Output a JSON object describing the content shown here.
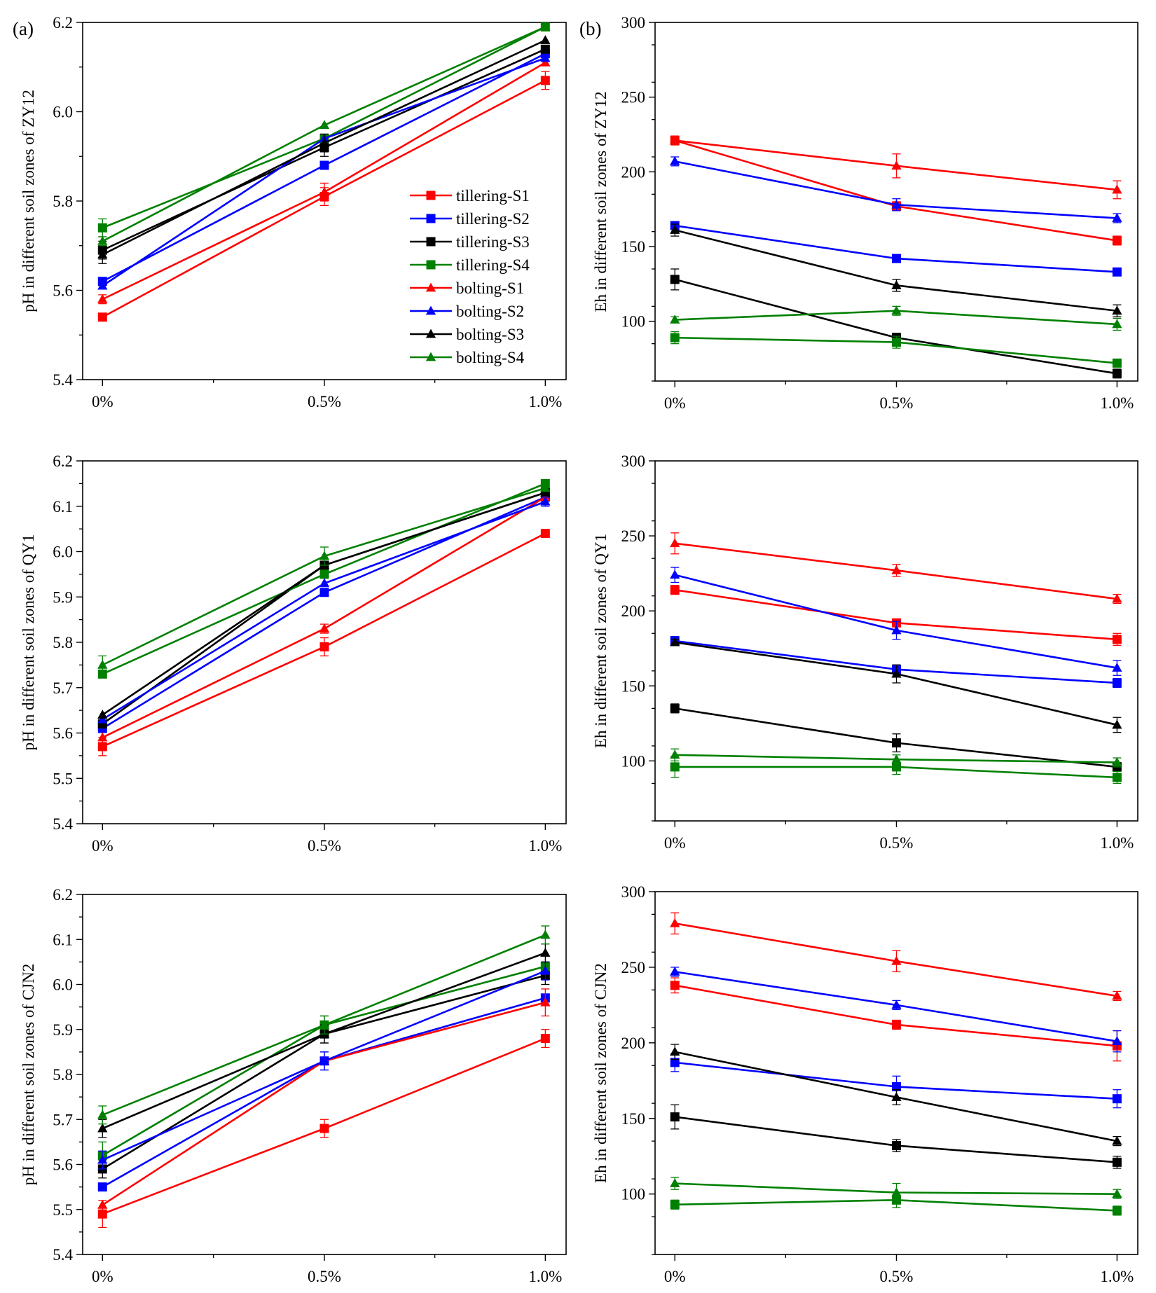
{
  "figure": {
    "panel_tags": [
      "(a)",
      "(b)"
    ],
    "colors": {
      "S1": "#ff0000",
      "S2": "#0000ff",
      "S3": "#000000",
      "S4": "#008000"
    }
  },
  "legend": [
    {
      "label": "tillering-S1",
      "color": "#ff0000",
      "marker": "square"
    },
    {
      "label": "tillering-S2",
      "color": "#0000ff",
      "marker": "square"
    },
    {
      "label": "tillering-S3",
      "color": "#000000",
      "marker": "square"
    },
    {
      "label": "tillering-S4",
      "color": "#008000",
      "marker": "square"
    },
    {
      "label": "bolting-S1",
      "color": "#ff0000",
      "marker": "triangle"
    },
    {
      "label": "bolting-S2",
      "color": "#0000ff",
      "marker": "triangle"
    },
    {
      "label": "bolting-S3",
      "color": "#000000",
      "marker": "triangle"
    },
    {
      "label": "bolting-S4",
      "color": "#008000",
      "marker": "triangle"
    }
  ],
  "chart_data": [
    {
      "type": "line",
      "id": "ph-zy12",
      "title": "",
      "categories": [
        "0%",
        "0.5%",
        "1.0%"
      ],
      "ylabel": "pH in different soil zones of ZY12",
      "xlabel": "",
      "ylim": [
        5.4,
        6.2
      ],
      "yticks": [
        5.4,
        5.6,
        5.8,
        6.0,
        6.2
      ],
      "ytick_labels": [
        "5.4",
        "5.6",
        "5.8",
        "6.0",
        "6.2"
      ],
      "yminor": 0.1,
      "series": [
        {
          "name": "tillering-S1",
          "values": [
            5.54,
            5.81,
            6.07
          ],
          "errors": [
            0.0,
            0.02,
            0.02
          ]
        },
        {
          "name": "tillering-S2",
          "values": [
            5.62,
            5.88,
            6.13
          ],
          "errors": [
            0.0,
            0.0,
            0.0
          ]
        },
        {
          "name": "tillering-S3",
          "values": [
            5.69,
            5.92,
            6.14
          ],
          "errors": [
            0.02,
            0.02,
            0.0
          ]
        },
        {
          "name": "tillering-S4",
          "values": [
            5.74,
            5.94,
            6.19
          ],
          "errors": [
            0.02,
            0.0,
            0.0
          ]
        },
        {
          "name": "bolting-S1",
          "values": [
            5.58,
            5.82,
            6.11
          ],
          "errors": [
            0.01,
            0.02,
            0.0
          ]
        },
        {
          "name": "bolting-S2",
          "values": [
            5.61,
            5.94,
            6.12
          ],
          "errors": [
            0.0,
            0.0,
            0.0
          ]
        },
        {
          "name": "bolting-S3",
          "values": [
            5.68,
            5.93,
            6.16
          ],
          "errors": [
            0.02,
            0.02,
            0.0
          ]
        },
        {
          "name": "bolting-S4",
          "values": [
            5.71,
            5.97,
            6.19
          ],
          "errors": [
            0.01,
            0.0,
            0.0
          ]
        }
      ]
    },
    {
      "type": "line",
      "id": "eh-zy12",
      "title": "",
      "categories": [
        "0%",
        "0.5%",
        "1.0%"
      ],
      "ylabel": "Eh in different soil zones of ZY12",
      "xlabel": "",
      "ylim": [
        60,
        300
      ],
      "yticks": [
        100,
        150,
        200,
        250,
        300
      ],
      "ytick_labels": [
        "100",
        "150",
        "200",
        "250",
        "300"
      ],
      "yminor": 25,
      "series": [
        {
          "name": "tillering-S1",
          "values": [
            221,
            177,
            154
          ],
          "errors": [
            3,
            3,
            3
          ]
        },
        {
          "name": "tillering-S2",
          "values": [
            164,
            142,
            133
          ],
          "errors": [
            2,
            2,
            2
          ]
        },
        {
          "name": "tillering-S3",
          "values": [
            128,
            89,
            65
          ],
          "errors": [
            7,
            3,
            3
          ]
        },
        {
          "name": "tillering-S4",
          "values": [
            89,
            86,
            72
          ],
          "errors": [
            4,
            4,
            2
          ]
        },
        {
          "name": "bolting-S1",
          "values": [
            221,
            204,
            188
          ],
          "errors": [
            3,
            8,
            6
          ]
        },
        {
          "name": "bolting-S2",
          "values": [
            207,
            178,
            169
          ],
          "errors": [
            3,
            4,
            3
          ]
        },
        {
          "name": "bolting-S3",
          "values": [
            161,
            124,
            107
          ],
          "errors": [
            4,
            4,
            4
          ]
        },
        {
          "name": "bolting-S4",
          "values": [
            101,
            107,
            98
          ],
          "errors": [
            2,
            3,
            4
          ]
        }
      ]
    },
    {
      "type": "line",
      "id": "ph-qy1",
      "title": "",
      "categories": [
        "0%",
        "0.5%",
        "1.0%"
      ],
      "ylabel": "pH in different soil zones of QY1",
      "xlabel": "",
      "ylim": [
        5.4,
        6.2
      ],
      "yticks": [
        5.4,
        5.5,
        5.6,
        5.7,
        5.8,
        5.9,
        6.0,
        6.1,
        6.2
      ],
      "ytick_labels": [
        "5.4",
        "5.5",
        "5.6",
        "5.7",
        "5.8",
        "5.9",
        "6.0",
        "6.1",
        "6.2"
      ],
      "yminor": 0.05,
      "series": [
        {
          "name": "tillering-S1",
          "values": [
            5.57,
            5.79,
            6.04
          ],
          "errors": [
            0.02,
            0.02,
            0.0
          ]
        },
        {
          "name": "tillering-S2",
          "values": [
            5.61,
            5.91,
            6.12
          ],
          "errors": [
            0.0,
            0.0,
            0.0
          ]
        },
        {
          "name": "tillering-S3",
          "values": [
            5.62,
            5.97,
            6.13
          ],
          "errors": [
            0.0,
            0.0,
            0.0
          ]
        },
        {
          "name": "tillering-S4",
          "values": [
            5.73,
            5.95,
            6.15
          ],
          "errors": [
            0.0,
            0.0,
            0.0
          ]
        },
        {
          "name": "bolting-S1",
          "values": [
            5.59,
            5.83,
            6.12
          ],
          "errors": [
            0.0,
            0.01,
            0.0
          ]
        },
        {
          "name": "bolting-S2",
          "values": [
            5.63,
            5.93,
            6.11
          ],
          "errors": [
            0.0,
            0.0,
            0.01
          ]
        },
        {
          "name": "bolting-S3",
          "values": [
            5.64,
            5.97,
            6.13
          ],
          "errors": [
            0.0,
            0.0,
            0.0
          ]
        },
        {
          "name": "bolting-S4",
          "values": [
            5.75,
            5.99,
            6.14
          ],
          "errors": [
            0.02,
            0.02,
            0.0
          ]
        }
      ]
    },
    {
      "type": "line",
      "id": "eh-qy1",
      "title": "",
      "categories": [
        "0%",
        "0.5%",
        "1.0%"
      ],
      "ylabel": "Eh in different soil zones of QY1",
      "xlabel": "",
      "ylim": [
        60,
        300
      ],
      "yticks": [
        100,
        150,
        200,
        250,
        300
      ],
      "ytick_labels": [
        "100",
        "150",
        "200",
        "250",
        "300"
      ],
      "yminor": 25,
      "series": [
        {
          "name": "tillering-S1",
          "values": [
            214,
            192,
            181
          ],
          "errors": [
            3,
            2,
            4
          ]
        },
        {
          "name": "tillering-S2",
          "values": [
            180,
            161,
            152
          ],
          "errors": [
            3,
            3,
            3
          ]
        },
        {
          "name": "tillering-S3",
          "values": [
            135,
            112,
            96
          ],
          "errors": [
            3,
            6,
            3
          ]
        },
        {
          "name": "tillering-S4",
          "values": [
            96,
            96,
            89
          ],
          "errors": [
            7,
            5,
            4
          ]
        },
        {
          "name": "bolting-S1",
          "values": [
            245,
            227,
            208
          ],
          "errors": [
            7,
            4,
            3
          ]
        },
        {
          "name": "bolting-S2",
          "values": [
            224,
            187,
            162
          ],
          "errors": [
            5,
            6,
            5
          ]
        },
        {
          "name": "bolting-S3",
          "values": [
            179,
            158,
            124
          ],
          "errors": [
            2,
            6,
            5
          ]
        },
        {
          "name": "bolting-S4",
          "values": [
            104,
            101,
            99
          ],
          "errors": [
            4,
            3,
            3
          ]
        }
      ]
    },
    {
      "type": "line",
      "id": "ph-cjn2",
      "title": "",
      "categories": [
        "0%",
        "0.5%",
        "1.0%"
      ],
      "ylabel": "pH in different soil zones of CJN2",
      "xlabel": "",
      "ylim": [
        5.4,
        6.2
      ],
      "yticks": [
        5.4,
        5.5,
        5.6,
        5.7,
        5.8,
        5.9,
        6.0,
        6.1,
        6.2
      ],
      "ytick_labels": [
        "5.4",
        "5.5",
        "5.6",
        "5.7",
        "5.8",
        "5.9",
        "6.0",
        "6.1",
        "6.2"
      ],
      "yminor": 0.05,
      "series": [
        {
          "name": "tillering-S1",
          "values": [
            5.49,
            5.68,
            5.88
          ],
          "errors": [
            0.03,
            0.02,
            0.02
          ]
        },
        {
          "name": "tillering-S2",
          "values": [
            5.55,
            5.83,
            5.97
          ],
          "errors": [
            0.0,
            0.02,
            0.0
          ]
        },
        {
          "name": "tillering-S3",
          "values": [
            5.59,
            5.89,
            6.02
          ],
          "errors": [
            0.02,
            0.02,
            0.02
          ]
        },
        {
          "name": "tillering-S4",
          "values": [
            5.62,
            5.91,
            6.04
          ],
          "errors": [
            0.03,
            0.02,
            0.0
          ]
        },
        {
          "name": "bolting-S1",
          "values": [
            5.51,
            5.83,
            5.96
          ],
          "errors": [
            0.0,
            0.0,
            0.03
          ]
        },
        {
          "name": "bolting-S2",
          "values": [
            5.61,
            5.83,
            6.03
          ],
          "errors": [
            0.02,
            0.02,
            0.02
          ]
        },
        {
          "name": "bolting-S3",
          "values": [
            5.68,
            5.89,
            6.07
          ],
          "errors": [
            0.02,
            0.02,
            0.02
          ]
        },
        {
          "name": "bolting-S4",
          "values": [
            5.71,
            5.91,
            6.11
          ],
          "errors": [
            0.02,
            0.02,
            0.02
          ]
        }
      ]
    },
    {
      "type": "line",
      "id": "eh-cjn2",
      "title": "",
      "categories": [
        "0%",
        "0.5%",
        "1.0%"
      ],
      "ylabel": "Eh in different soil zones of CJN2",
      "xlabel": "",
      "ylim": [
        60,
        300
      ],
      "yticks": [
        100,
        150,
        200,
        250,
        300
      ],
      "ytick_labels": [
        "100",
        "150",
        "200",
        "250",
        "300"
      ],
      "yminor": 25,
      "series": [
        {
          "name": "tillering-S1",
          "values": [
            238,
            212,
            198
          ],
          "errors": [
            5,
            3,
            10
          ]
        },
        {
          "name": "tillering-S2",
          "values": [
            187,
            171,
            163
          ],
          "errors": [
            6,
            7,
            6
          ]
        },
        {
          "name": "tillering-S3",
          "values": [
            151,
            132,
            121
          ],
          "errors": [
            8,
            4,
            4
          ]
        },
        {
          "name": "tillering-S4",
          "values": [
            93,
            96,
            89
          ],
          "errors": [
            3,
            5,
            3
          ]
        },
        {
          "name": "bolting-S1",
          "values": [
            279,
            254,
            231
          ],
          "errors": [
            7,
            7,
            3
          ]
        },
        {
          "name": "bolting-S2",
          "values": [
            247,
            225,
            201
          ],
          "errors": [
            3,
            3,
            7
          ]
        },
        {
          "name": "bolting-S3",
          "values": [
            194,
            164,
            135
          ],
          "errors": [
            5,
            5,
            3
          ]
        },
        {
          "name": "bolting-S4",
          "values": [
            107,
            101,
            100
          ],
          "errors": [
            4,
            6,
            3
          ]
        }
      ]
    }
  ]
}
